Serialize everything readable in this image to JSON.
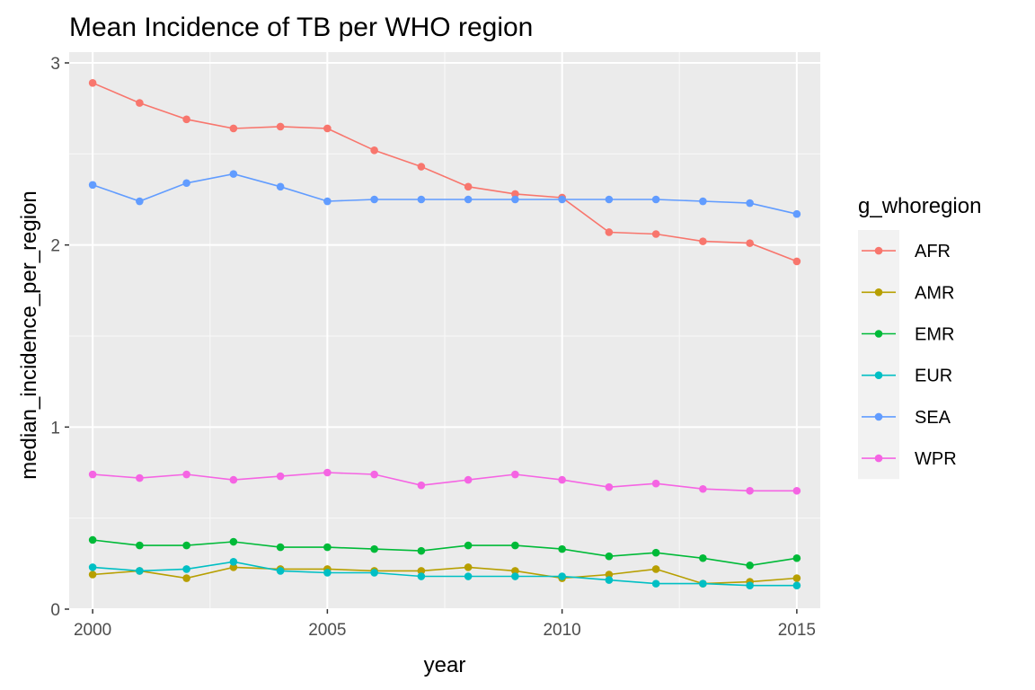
{
  "chart_data": {
    "type": "line",
    "title": "Mean Incidence of TB per WHO region",
    "xlabel": "year",
    "ylabel": "median_incidence_per_region",
    "xlim": [
      1999.5,
      2015.5
    ],
    "ylim": [
      0,
      3
    ],
    "x_ticks": [
      2000,
      2005,
      2010,
      2015
    ],
    "y_ticks": [
      0,
      1,
      2,
      3
    ],
    "grid": true,
    "legend": {
      "title": "g_whoregion",
      "position": "right"
    },
    "x": [
      2000,
      2001,
      2002,
      2003,
      2004,
      2005,
      2006,
      2007,
      2008,
      2009,
      2010,
      2011,
      2012,
      2013,
      2014,
      2015
    ],
    "series": [
      {
        "name": "AFR",
        "color": "#F8766D",
        "values": [
          2.89,
          2.78,
          2.69,
          2.64,
          2.65,
          2.64,
          2.52,
          2.43,
          2.32,
          2.28,
          2.26,
          2.07,
          2.06,
          2.02,
          2.01,
          1.91
        ]
      },
      {
        "name": "AMR",
        "color": "#B79F00",
        "values": [
          0.19,
          0.21,
          0.17,
          0.23,
          0.22,
          0.22,
          0.21,
          0.21,
          0.23,
          0.21,
          0.17,
          0.19,
          0.22,
          0.14,
          0.15,
          0.17
        ]
      },
      {
        "name": "EMR",
        "color": "#00BA38",
        "values": [
          0.38,
          0.35,
          0.35,
          0.37,
          0.34,
          0.34,
          0.33,
          0.32,
          0.35,
          0.35,
          0.33,
          0.29,
          0.31,
          0.28,
          0.24,
          0.28
        ]
      },
      {
        "name": "EUR",
        "color": "#00BFC4",
        "values": [
          0.23,
          0.21,
          0.22,
          0.26,
          0.21,
          0.2,
          0.2,
          0.18,
          0.18,
          0.18,
          0.18,
          0.16,
          0.14,
          0.14,
          0.13,
          0.13
        ]
      },
      {
        "name": "SEA",
        "color": "#619CFF",
        "values": [
          2.33,
          2.24,
          2.34,
          2.39,
          2.32,
          2.24,
          2.25,
          2.25,
          2.25,
          2.25,
          2.25,
          2.25,
          2.25,
          2.24,
          2.23,
          2.17
        ]
      },
      {
        "name": "WPR",
        "color": "#F564E3",
        "values": [
          0.74,
          0.72,
          0.74,
          0.71,
          0.73,
          0.75,
          0.74,
          0.68,
          0.71,
          0.74,
          0.71,
          0.67,
          0.69,
          0.66,
          0.65,
          0.65
        ]
      }
    ]
  }
}
